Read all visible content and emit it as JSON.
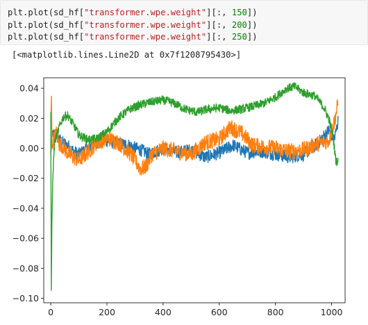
{
  "cell": {
    "code_lines": [
      {
        "prefix": "plt.plot(sd_hf[",
        "key": "\"transformer.wpe.weight\"",
        "mid": "][:, ",
        "num": "150",
        "suffix": "])"
      },
      {
        "prefix": "plt.plot(sd_hf[",
        "key": "\"transformer.wpe.weight\"",
        "mid": "][:, ",
        "num": "200",
        "suffix": "])"
      },
      {
        "prefix": "plt.plot(sd_hf[",
        "key": "\"transformer.wpe.weight\"",
        "mid": "][:, ",
        "num": "250",
        "suffix": "])"
      }
    ],
    "output_text": "[<matplotlib.lines.Line2D at 0x7f1208795430>]"
  },
  "colors": {
    "blue": "#1f77b4",
    "orange": "#ff7f0e",
    "green": "#2ca02c"
  },
  "chart_data": {
    "type": "line",
    "title": "",
    "xlabel": "",
    "ylabel": "",
    "xlim": [
      -25,
      1048
    ],
    "ylim": [
      -0.103,
      0.047
    ],
    "grid": false,
    "x_ticks": [
      0,
      200,
      400,
      600,
      800,
      1000
    ],
    "y_ticks": [
      -0.1,
      -0.08,
      -0.06,
      -0.04,
      -0.02,
      0.0,
      0.02,
      0.04
    ],
    "x_tick_labels": [
      "0",
      "200",
      "400",
      "600",
      "800",
      "1000"
    ],
    "y_tick_labels": [
      "−0.10",
      "−0.08",
      "−0.06",
      "−0.04",
      "−0.02",
      "0.00",
      "0.02",
      "0.04"
    ],
    "series": [
      {
        "color": "#1f77b4",
        "x": [
          0,
          5,
          10,
          20,
          30,
          40,
          60,
          80,
          100,
          130,
          160,
          200,
          240,
          280,
          300,
          320,
          350,
          400,
          450,
          500,
          550,
          600,
          650,
          700,
          750,
          800,
          850,
          900,
          950,
          990,
          1010,
          1023
        ],
        "y": [
          -0.005,
          0.012,
          0.008,
          0.01,
          0.006,
          0.004,
          0.002,
          -0.002,
          -0.004,
          0.0,
          0.004,
          0.005,
          0.003,
          0.002,
          0.0,
          -0.001,
          -0.004,
          0.0,
          -0.003,
          -0.001,
          -0.006,
          -0.003,
          0.002,
          -0.003,
          -0.002,
          -0.004,
          -0.006,
          -0.004,
          0.003,
          0.012,
          0.006,
          0.018
        ],
        "noise": 0.0045
      },
      {
        "color": "#ff7f0e",
        "x": [
          0,
          2,
          5,
          10,
          20,
          30,
          40,
          60,
          80,
          100,
          130,
          160,
          200,
          240,
          280,
          300,
          320,
          340,
          360,
          400,
          450,
          500,
          550,
          600,
          640,
          680,
          720,
          760,
          800,
          850,
          900,
          950,
          990,
          1010,
          1023
        ],
        "y": [
          0.012,
          0.035,
          0.0,
          0.006,
          0.01,
          0.003,
          0.002,
          -0.003,
          -0.006,
          -0.008,
          -0.003,
          0.003,
          0.007,
          0.004,
          -0.003,
          -0.008,
          -0.014,
          -0.012,
          -0.004,
          0.0,
          -0.002,
          -0.004,
          0.004,
          0.006,
          0.014,
          0.01,
          0.002,
          0.001,
          0.0,
          -0.002,
          -0.001,
          0.003,
          0.005,
          0.018,
          0.03
        ],
        "noise": 0.0055
      },
      {
        "color": "#2ca02c",
        "x": [
          0,
          2,
          4,
          8,
          14,
          20,
          30,
          45,
          60,
          80,
          100,
          130,
          160,
          200,
          240,
          280,
          320,
          360,
          400,
          440,
          480,
          520,
          560,
          600,
          640,
          680,
          720,
          760,
          800,
          840,
          870,
          900,
          940,
          970,
          990,
          1005,
          1015,
          1023
        ],
        "y": [
          0.024,
          -0.095,
          -0.05,
          -0.015,
          0.004,
          0.008,
          0.014,
          0.021,
          0.022,
          0.016,
          0.009,
          0.006,
          0.006,
          0.011,
          0.02,
          0.026,
          0.029,
          0.031,
          0.032,
          0.03,
          0.026,
          0.024,
          0.026,
          0.027,
          0.025,
          0.026,
          0.028,
          0.03,
          0.034,
          0.04,
          0.041,
          0.037,
          0.035,
          0.028,
          0.02,
          0.008,
          -0.008,
          -0.009
        ],
        "noise": 0.003
      }
    ]
  }
}
